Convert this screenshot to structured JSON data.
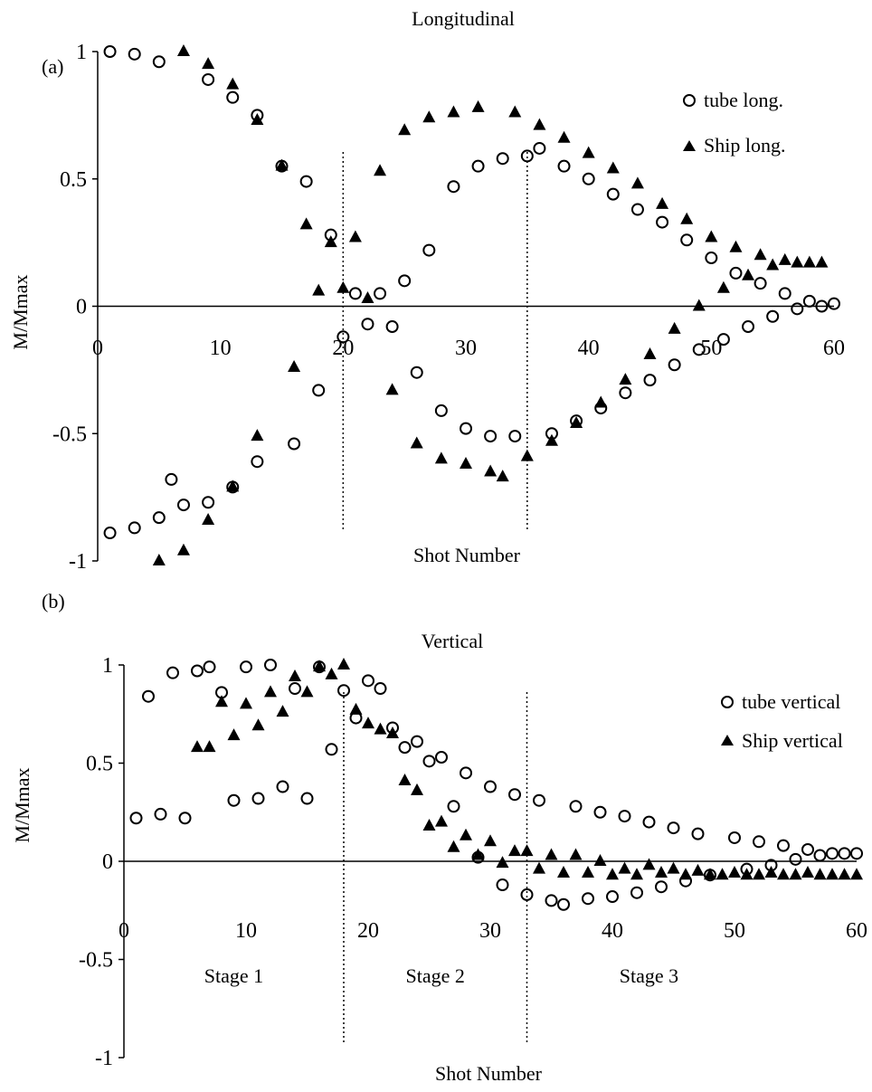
{
  "chart_data": [
    {
      "type": "scatter",
      "panel_label": "(a)",
      "title": "Longitudinal",
      "xlabel": "Shot Number",
      "ylabel": "M/Mmax",
      "xlim": [
        0,
        60
      ],
      "ylim": [
        -1,
        1
      ],
      "x_ticks": [
        "0",
        "10",
        "20",
        "30",
        "40",
        "50",
        "60"
      ],
      "y_ticks": [
        "-1",
        "-0.5",
        "0",
        "0.5",
        "1"
      ],
      "legend_position": "top-right",
      "vlines": [
        20,
        35
      ],
      "series": [
        {
          "name": "tube long.",
          "marker": "open-circle",
          "points": [
            [
              1,
              1
            ],
            [
              3,
              0.99
            ],
            [
              5,
              0.96
            ],
            [
              9,
              0.89
            ],
            [
              11,
              0.82
            ],
            [
              13,
              0.75
            ],
            [
              15,
              0.55
            ],
            [
              17,
              0.49
            ],
            [
              19,
              0.28
            ],
            [
              21,
              0.05
            ],
            [
              22,
              -0.07
            ],
            [
              23,
              0.05
            ],
            [
              24,
              -0.08
            ],
            [
              25,
              0.1
            ],
            [
              26,
              -0.26
            ],
            [
              27,
              0.22
            ],
            [
              28,
              -0.41
            ],
            [
              29,
              0.47
            ],
            [
              30,
              -0.48
            ],
            [
              31,
              0.55
            ],
            [
              32,
              -0.51
            ],
            [
              33,
              0.58
            ],
            [
              34,
              -0.51
            ],
            [
              35,
              0.59
            ],
            [
              36,
              0.62
            ],
            [
              37,
              -0.5
            ],
            [
              38,
              0.55
            ],
            [
              39,
              -0.45
            ],
            [
              40,
              0.5
            ],
            [
              41,
              -0.4
            ],
            [
              42,
              0.44
            ],
            [
              43,
              -0.34
            ],
            [
              44,
              0.38
            ],
            [
              45,
              -0.29
            ],
            [
              46,
              0.33
            ],
            [
              47,
              -0.23
            ],
            [
              48,
              0.26
            ],
            [
              49,
              -0.17
            ],
            [
              50,
              0.19
            ],
            [
              51,
              -0.13
            ],
            [
              52,
              0.13
            ],
            [
              53,
              -0.08
            ],
            [
              54,
              0.09
            ],
            [
              55,
              -0.04
            ],
            [
              56,
              0.05
            ],
            [
              57,
              -0.01
            ],
            [
              58,
              0.02
            ],
            [
              59,
              0
            ],
            [
              60,
              0.01
            ],
            [
              1,
              -0.89
            ],
            [
              3,
              -0.87
            ],
            [
              5,
              -0.83
            ],
            [
              6,
              -0.68
            ],
            [
              7,
              -0.78
            ],
            [
              9,
              -0.77
            ],
            [
              11,
              -0.71
            ],
            [
              13,
              -0.61
            ],
            [
              16,
              -0.54
            ],
            [
              18,
              -0.33
            ],
            [
              20,
              -0.12
            ]
          ]
        },
        {
          "name": "Ship long.",
          "marker": "filled-triangle",
          "points": [
            [
              7,
              1
            ],
            [
              9,
              0.95
            ],
            [
              11,
              0.87
            ],
            [
              13,
              0.73
            ],
            [
              15,
              0.55
            ],
            [
              17,
              0.32
            ],
            [
              19,
              0.25
            ],
            [
              21,
              0.27
            ],
            [
              23,
              0.53
            ],
            [
              25,
              0.69
            ],
            [
              27,
              0.74
            ],
            [
              29,
              0.76
            ],
            [
              31,
              0.78
            ],
            [
              34,
              0.76
            ],
            [
              36,
              0.71
            ],
            [
              38,
              0.66
            ],
            [
              40,
              0.6
            ],
            [
              42,
              0.54
            ],
            [
              44,
              0.48
            ],
            [
              46,
              0.4
            ],
            [
              48,
              0.34
            ],
            [
              50,
              0.27
            ],
            [
              52,
              0.23
            ],
            [
              54,
              0.2
            ],
            [
              55,
              0.16
            ],
            [
              56,
              0.18
            ],
            [
              57,
              0.17
            ],
            [
              58,
              0.17
            ],
            [
              59,
              0.17
            ],
            [
              18,
              0.06
            ],
            [
              20,
              0.07
            ],
            [
              22,
              0.03
            ],
            [
              5,
              -1
            ],
            [
              7,
              -0.96
            ],
            [
              9,
              -0.84
            ],
            [
              11,
              -0.71
            ],
            [
              13,
              -0.51
            ],
            [
              16,
              -0.24
            ],
            [
              24,
              -0.33
            ],
            [
              26,
              -0.54
            ],
            [
              28,
              -0.6
            ],
            [
              30,
              -0.62
            ],
            [
              32,
              -0.65
            ],
            [
              33,
              -0.67
            ],
            [
              35,
              -0.59
            ],
            [
              37,
              -0.53
            ],
            [
              39,
              -0.46
            ],
            [
              41,
              -0.38
            ],
            [
              43,
              -0.29
            ],
            [
              45,
              -0.19
            ],
            [
              47,
              -0.09
            ],
            [
              49,
              0
            ],
            [
              51,
              0.07
            ],
            [
              53,
              0.12
            ]
          ]
        }
      ]
    },
    {
      "type": "scatter",
      "panel_label": "(b)",
      "title": "Vertical",
      "xlabel": "Shot Number",
      "ylabel": "M/Mmax",
      "xlim": [
        0,
        60
      ],
      "ylim": [
        -1,
        1
      ],
      "x_ticks": [
        "0",
        "10",
        "20",
        "30",
        "40",
        "50",
        "60"
      ],
      "y_ticks": [
        "-1",
        "-0.5",
        "0",
        "0.5",
        "1"
      ],
      "legend_position": "top-right",
      "vlines": [
        18,
        33
      ],
      "stage_labels": [
        {
          "text": "Stage 1",
          "x": 9,
          "y": -0.58
        },
        {
          "text": "Stage 2",
          "x": 25.5,
          "y": -0.58
        },
        {
          "text": "Stage 3",
          "x": 43,
          "y": -0.58
        }
      ],
      "series": [
        {
          "name": "tube vertical",
          "marker": "open-circle",
          "points": [
            [
              1,
              0.22
            ],
            [
              2,
              0.84
            ],
            [
              3,
              0.24
            ],
            [
              4,
              0.96
            ],
            [
              5,
              0.22
            ],
            [
              6,
              0.97
            ],
            [
              7,
              0.99
            ],
            [
              8,
              0.86
            ],
            [
              9,
              0.31
            ],
            [
              10,
              0.99
            ],
            [
              11,
              0.32
            ],
            [
              12,
              1
            ],
            [
              13,
              0.38
            ],
            [
              14,
              0.88
            ],
            [
              15,
              0.32
            ],
            [
              16,
              0.99
            ],
            [
              17,
              0.57
            ],
            [
              18,
              0.87
            ],
            [
              19,
              0.73
            ],
            [
              20,
              0.92
            ],
            [
              21,
              0.88
            ],
            [
              22,
              0.68
            ],
            [
              23,
              0.58
            ],
            [
              24,
              0.61
            ],
            [
              25,
              0.51
            ],
            [
              26,
              0.53
            ],
            [
              27,
              0.28
            ],
            [
              28,
              0.45
            ],
            [
              29,
              0.02
            ],
            [
              30,
              0.38
            ],
            [
              31,
              -0.12
            ],
            [
              32,
              0.34
            ],
            [
              33,
              -0.17
            ],
            [
              34,
              0.31
            ],
            [
              35,
              -0.2
            ],
            [
              36,
              -0.22
            ],
            [
              37,
              0.28
            ],
            [
              38,
              -0.19
            ],
            [
              39,
              0.25
            ],
            [
              40,
              -0.18
            ],
            [
              41,
              0.23
            ],
            [
              42,
              -0.16
            ],
            [
              43,
              0.2
            ],
            [
              44,
              -0.13
            ],
            [
              45,
              0.17
            ],
            [
              46,
              -0.1
            ],
            [
              47,
              0.14
            ],
            [
              48,
              -0.07
            ],
            [
              50,
              0.12
            ],
            [
              51,
              -0.04
            ],
            [
              52,
              0.1
            ],
            [
              53,
              -0.02
            ],
            [
              54,
              0.08
            ],
            [
              55,
              0.01
            ],
            [
              56,
              0.06
            ],
            [
              57,
              0.03
            ],
            [
              58,
              0.04
            ],
            [
              59,
              0.04
            ],
            [
              60,
              0.04
            ]
          ]
        },
        {
          "name": "Ship vertical",
          "marker": "filled-triangle",
          "points": [
            [
              6,
              0.58
            ],
            [
              7,
              0.58
            ],
            [
              8,
              0.81
            ],
            [
              9,
              0.64
            ],
            [
              10,
              0.8
            ],
            [
              11,
              0.69
            ],
            [
              12,
              0.86
            ],
            [
              13,
              0.76
            ],
            [
              14,
              0.94
            ],
            [
              15,
              0.86
            ],
            [
              16,
              0.99
            ],
            [
              17,
              0.95
            ],
            [
              18,
              1
            ],
            [
              19,
              0.77
            ],
            [
              20,
              0.7
            ],
            [
              21,
              0.67
            ],
            [
              22,
              0.65
            ],
            [
              23,
              0.41
            ],
            [
              24,
              0.36
            ],
            [
              25,
              0.18
            ],
            [
              26,
              0.2
            ],
            [
              27,
              0.07
            ],
            [
              28,
              0.13
            ],
            [
              29,
              0.03
            ],
            [
              30,
              0.1
            ],
            [
              31,
              -0.01
            ],
            [
              32,
              0.05
            ],
            [
              33,
              0.05
            ],
            [
              34,
              -0.04
            ],
            [
              35,
              0.03
            ],
            [
              36,
              -0.06
            ],
            [
              37,
              0.03
            ],
            [
              38,
              -0.06
            ],
            [
              39,
              0
            ],
            [
              40,
              -0.07
            ],
            [
              41,
              -0.04
            ],
            [
              42,
              -0.07
            ],
            [
              43,
              -0.02
            ],
            [
              44,
              -0.06
            ],
            [
              45,
              -0.04
            ],
            [
              46,
              -0.07
            ],
            [
              47,
              -0.05
            ],
            [
              48,
              -0.07
            ],
            [
              49,
              -0.07
            ],
            [
              50,
              -0.06
            ],
            [
              51,
              -0.07
            ],
            [
              52,
              -0.07
            ],
            [
              53,
              -0.06
            ],
            [
              54,
              -0.07
            ],
            [
              55,
              -0.07
            ],
            [
              56,
              -0.06
            ],
            [
              57,
              -0.07
            ],
            [
              58,
              -0.07
            ],
            [
              59,
              -0.07
            ],
            [
              60,
              -0.07
            ]
          ]
        }
      ]
    }
  ]
}
